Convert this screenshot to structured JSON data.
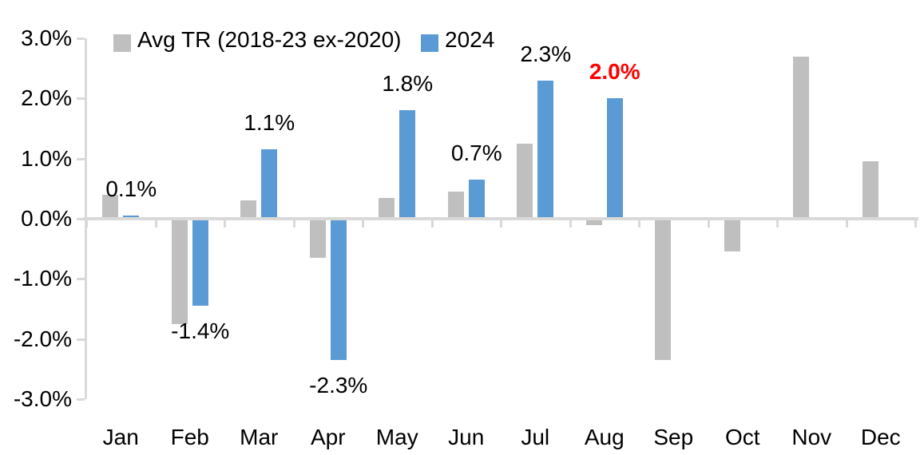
{
  "chart_data": {
    "type": "bar",
    "title": "",
    "xlabel": "",
    "ylabel": "",
    "categories": [
      "Jan",
      "Feb",
      "Mar",
      "Apr",
      "May",
      "Jun",
      "Jul",
      "Aug",
      "Sep",
      "Oct",
      "Nov",
      "Dec"
    ],
    "series": [
      {
        "name": "Avg TR (2018-23 ex-2020)",
        "color": "#BFBFBF",
        "values": [
          0.4,
          -1.75,
          0.3,
          -0.65,
          0.35,
          0.45,
          1.25,
          -0.1,
          -2.35,
          -0.55,
          2.7,
          0.95
        ]
      },
      {
        "name": "2024",
        "color": "#5B9BD5",
        "values": [
          0.05,
          -1.45,
          1.15,
          -2.35,
          1.8,
          0.65,
          2.3,
          2.0,
          null,
          null,
          null,
          null
        ],
        "data_labels": [
          {
            "text": "0.1%",
            "color": "#000000",
            "bold": false
          },
          {
            "text": "-1.4%",
            "color": "#000000",
            "bold": false
          },
          {
            "text": "1.1%",
            "color": "#000000",
            "bold": false
          },
          {
            "text": "-2.3%",
            "color": "#000000",
            "bold": false
          },
          {
            "text": "1.8%",
            "color": "#000000",
            "bold": false
          },
          {
            "text": "0.7%",
            "color": "#000000",
            "bold": false
          },
          {
            "text": "2.3%",
            "color": "#000000",
            "bold": false
          },
          {
            "text": "2.0%",
            "color": "#FF0000",
            "bold": true
          },
          null,
          null,
          null,
          null
        ]
      }
    ],
    "ylim": [
      -3,
      3
    ],
    "yticks": [
      {
        "label": "3.0%",
        "value": 3
      },
      {
        "label": "2.0%",
        "value": 2
      },
      {
        "label": "1.0%",
        "value": 1
      },
      {
        "label": "0.0%",
        "value": 0
      },
      {
        "label": "-1.0%",
        "value": -1
      },
      {
        "label": "-2.0%",
        "value": -2
      },
      {
        "label": "-3.0%",
        "value": -3
      }
    ],
    "grid": false,
    "legend_position": "top",
    "axis_color": "#D9D9D9",
    "text_color": "#000000",
    "highlight_color": "#FF0000"
  }
}
